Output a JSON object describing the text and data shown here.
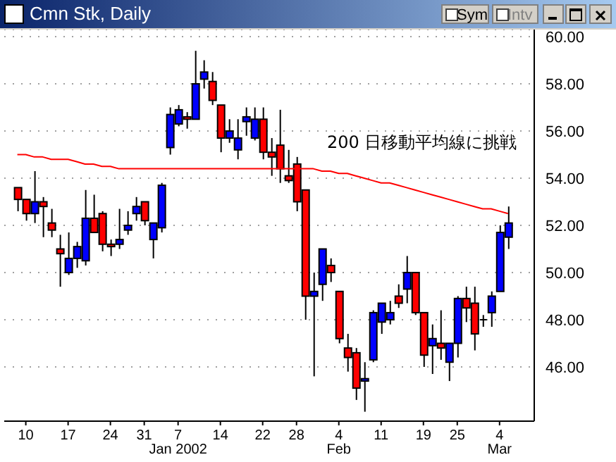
{
  "chart_data": {
    "type": "candlestick",
    "title": "Cmn Stk, Daily",
    "annotations": [
      "200 日移動平均線に挑戦",
      "Sym",
      "Intv"
    ],
    "categories": [
      null,
      "10",
      null,
      null,
      null,
      null,
      "17",
      null,
      null,
      null,
      null,
      "24",
      null,
      null,
      null,
      "31",
      null,
      null,
      null,
      "7\nJan 2002",
      null,
      null,
      null,
      null,
      "14",
      null,
      null,
      null,
      null,
      "22",
      null,
      null,
      null,
      "28",
      null,
      null,
      null,
      null,
      "4\nFeb",
      null,
      null,
      null,
      null,
      "11",
      null,
      null,
      null,
      null,
      "19",
      null,
      null,
      null,
      "25",
      null,
      null,
      null,
      null,
      "4\nMar",
      null
    ],
    "ohlc": [
      [
        53.6,
        53.6,
        52.6,
        53.1
      ],
      [
        53.1,
        53.1,
        52.2,
        52.5
      ],
      [
        52.5,
        54.3,
        52.1,
        53.0
      ],
      [
        53.0,
        53.2,
        51.5,
        52.8
      ],
      [
        52.1,
        52.7,
        51.5,
        51.8
      ],
      [
        51.0,
        51.6,
        49.4,
        50.8
      ],
      [
        50.0,
        51.7,
        49.9,
        50.6
      ],
      [
        50.6,
        51.3,
        50.2,
        51.1
      ],
      [
        50.5,
        53.5,
        50.3,
        52.3
      ],
      [
        52.3,
        53.3,
        51.7,
        51.7
      ],
      [
        52.5,
        52.6,
        50.9,
        51.2
      ],
      [
        51.2,
        51.4,
        50.7,
        51.1
      ],
      [
        51.2,
        52.7,
        51.0,
        51.4
      ],
      [
        51.8,
        52.6,
        51.6,
        52.0
      ],
      [
        52.5,
        53.2,
        52.2,
        52.8
      ],
      [
        53.0,
        53.0,
        52.0,
        52.2
      ],
      [
        51.4,
        52.1,
        50.6,
        52.1
      ],
      [
        51.9,
        53.8,
        51.7,
        53.7
      ],
      [
        55.3,
        57.0,
        55.0,
        56.7
      ],
      [
        56.3,
        57.1,
        56.2,
        56.9
      ],
      [
        56.6,
        56.8,
        56.1,
        56.5
      ],
      [
        56.5,
        59.4,
        56.5,
        58.0
      ],
      [
        58.2,
        59.0,
        57.8,
        58.5
      ],
      [
        58.1,
        58.5,
        57.1,
        57.3
      ],
      [
        57.1,
        57.1,
        55.1,
        55.7
      ],
      [
        55.7,
        56.5,
        55.5,
        56.0
      ],
      [
        55.2,
        56.5,
        54.8,
        55.7
      ],
      [
        56.4,
        57.0,
        55.8,
        56.6
      ],
      [
        55.7,
        57.0,
        55.6,
        56.5
      ],
      [
        56.5,
        57.0,
        54.8,
        55.1
      ],
      [
        55.1,
        55.7,
        54.1,
        54.9
      ],
      [
        55.4,
        56.9,
        53.8,
        54.4
      ],
      [
        54.1,
        55.2,
        53.8,
        53.9
      ],
      [
        54.6,
        54.9,
        52.6,
        53.0
      ],
      [
        53.5,
        53.5,
        48.0,
        49.0
      ],
      [
        49.0,
        50.0,
        45.6,
        49.2
      ],
      [
        49.5,
        51.0,
        48.8,
        51.0
      ],
      [
        50.3,
        50.6,
        49.6,
        50.0
      ],
      [
        49.2,
        49.2,
        47.0,
        47.2
      ],
      [
        46.8,
        47.4,
        45.8,
        46.4
      ],
      [
        46.6,
        46.8,
        44.6,
        45.1
      ],
      [
        45.4,
        46.2,
        44.1,
        45.5
      ],
      [
        46.3,
        48.4,
        46.2,
        48.3
      ],
      [
        47.9,
        48.7,
        47.4,
        48.7
      ],
      [
        48.0,
        48.8,
        47.8,
        48.3
      ],
      [
        49.0,
        49.5,
        48.5,
        48.7
      ],
      [
        49.3,
        50.7,
        48.7,
        50.0
      ],
      [
        50.0,
        50.0,
        48.2,
        48.3
      ],
      [
        48.3,
        48.3,
        46.0,
        46.5
      ],
      [
        46.9,
        47.8,
        45.7,
        47.2
      ],
      [
        47.0,
        48.4,
        46.3,
        46.8
      ],
      [
        46.2,
        47.0,
        45.4,
        47.0
      ],
      [
        47.0,
        49.0,
        46.4,
        48.9
      ],
      [
        48.9,
        49.4,
        47.9,
        48.5
      ],
      [
        48.7,
        49.4,
        46.7,
        47.4
      ],
      [
        48.0,
        48.2,
        47.7,
        48.0
      ],
      [
        48.3,
        49.2,
        47.7,
        49.0
      ],
      [
        49.2,
        52.0,
        49.2,
        51.7
      ],
      [
        51.5,
        52.8,
        51.0,
        52.1
      ]
    ],
    "colors": [
      "#ff0000",
      "#ff0000",
      "#0000ff",
      "#ff0000",
      "#ff0000",
      "#ff0000",
      "#0000ff",
      "#0000ff",
      "#0000ff",
      "#ff0000",
      "#ff0000",
      "#ff0000",
      "#0000ff",
      "#0000ff",
      "#0000ff",
      "#ff0000",
      "#0000ff",
      "#0000ff",
      "#0000ff",
      "#0000ff",
      "#ff0000",
      "#0000ff",
      "#0000ff",
      "#ff0000",
      "#ff0000",
      "#0000ff",
      "#0000ff",
      "#0000ff",
      "#0000ff",
      "#ff0000",
      "#ff0000",
      "#ff0000",
      "#ff0000",
      "#ff0000",
      "#ff0000",
      "#0000ff",
      "#0000ff",
      "#ff0000",
      "#ff0000",
      "#ff0000",
      "#ff0000",
      "#0000ff",
      "#0000ff",
      "#0000ff",
      "#0000ff",
      "#ff0000",
      "#0000ff",
      "#ff0000",
      "#ff0000",
      "#0000ff",
      "#ff0000",
      "#0000ff",
      "#0000ff",
      "#ff0000",
      "#ff0000",
      "#000000",
      "#0000ff",
      "#0000ff",
      "#0000ff"
    ],
    "series": [
      {
        "type": "line",
        "color": "#ff0000",
        "values": [
          55.0,
          55.0,
          54.9,
          54.9,
          54.8,
          54.8,
          54.8,
          54.7,
          54.6,
          54.6,
          54.5,
          54.5,
          54.4,
          54.4,
          54.4,
          54.4,
          54.4,
          54.4,
          54.4,
          54.4,
          54.4,
          54.4,
          54.4,
          54.4,
          54.4,
          54.4,
          54.4,
          54.4,
          54.4,
          54.4,
          54.4,
          54.4,
          54.4,
          54.4,
          54.4,
          54.4,
          54.3,
          54.3,
          54.2,
          54.2,
          54.1,
          54.0,
          53.9,
          53.8,
          53.8,
          53.7,
          53.6,
          53.5,
          53.4,
          53.3,
          53.2,
          53.1,
          53.0,
          52.9,
          52.8,
          52.7,
          52.7,
          52.6,
          52.5
        ]
      }
    ],
    "ylim": [
      43.7,
      60.3
    ],
    "yticks": [
      {
        "value": 46,
        "label": "46.00"
      },
      {
        "value": 48,
        "label": "48.00"
      },
      {
        "value": 50,
        "label": "50.00"
      },
      {
        "value": 52,
        "label": "52.00"
      },
      {
        "value": 54,
        "label": "54.00"
      },
      {
        "value": 56,
        "label": "56.00"
      },
      {
        "value": 58,
        "label": "58.00"
      },
      {
        "value": 60,
        "label": "60.00"
      }
    ],
    "grid": "y"
  }
}
